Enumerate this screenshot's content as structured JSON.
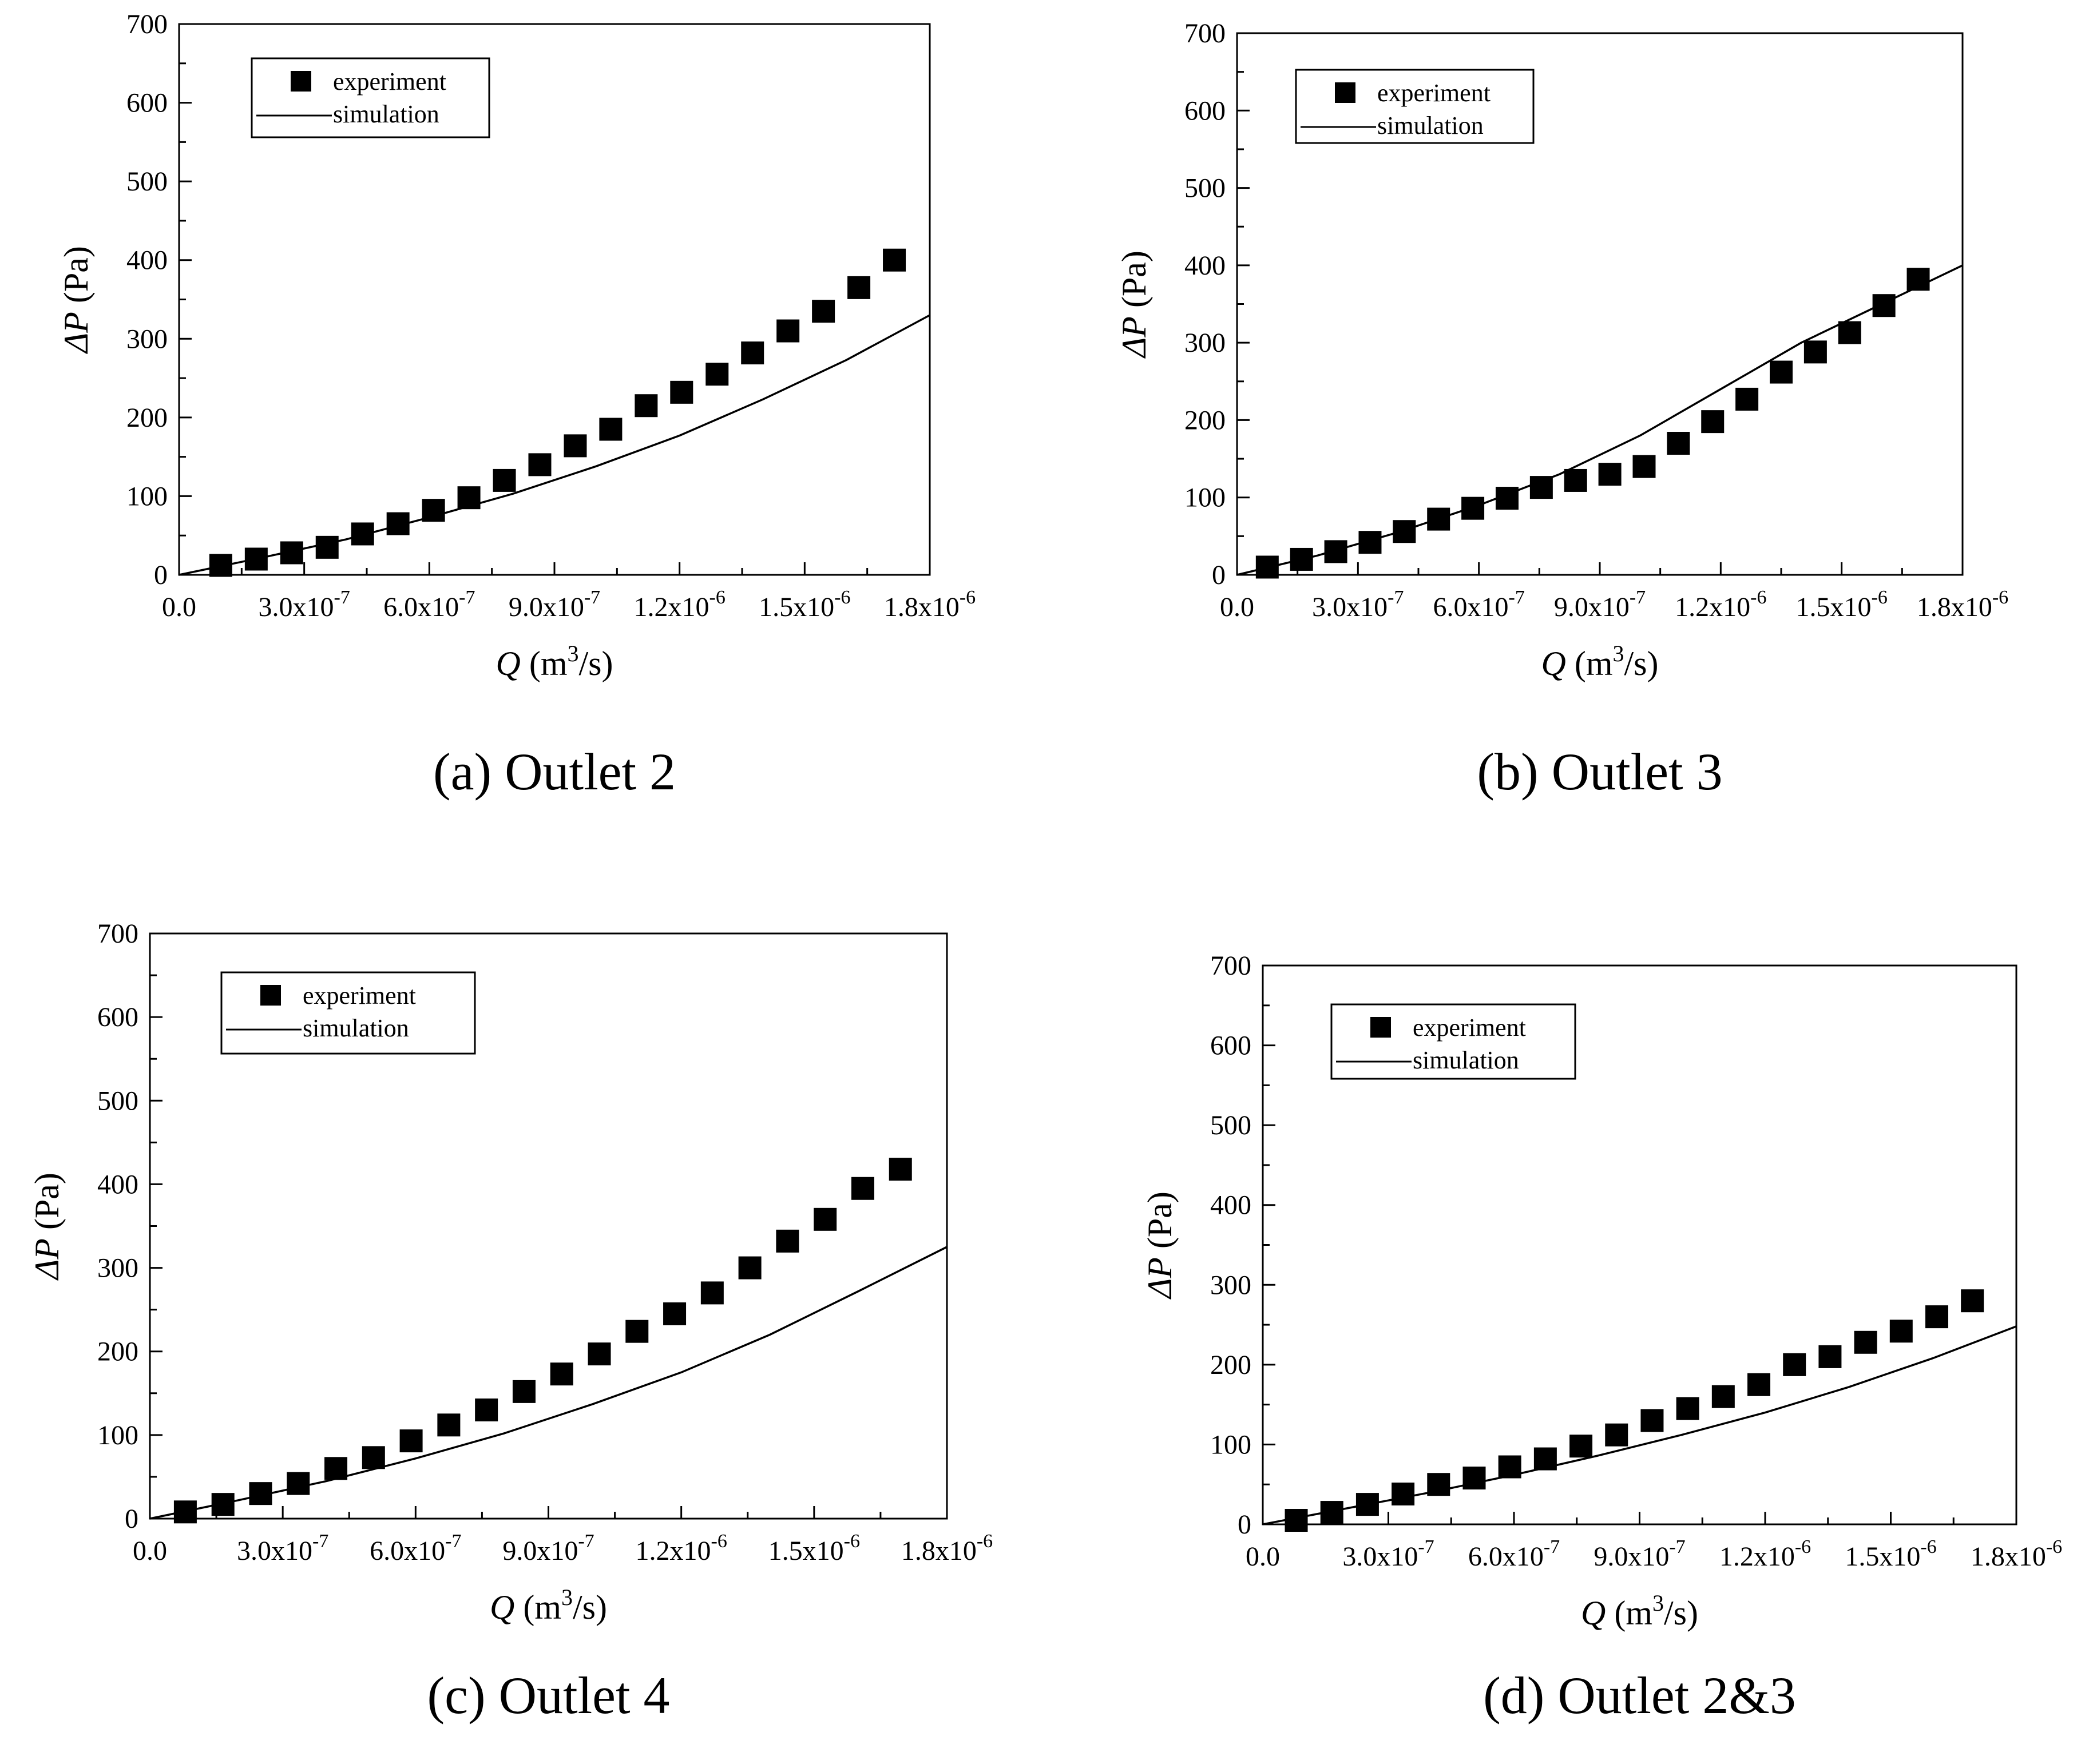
{
  "chart_data": [
    {
      "id": "a",
      "type": "scatter+line",
      "caption": "(a) Outlet 2",
      "xlabel": {
        "italic": "Q",
        "text": " (m",
        "sup": "3",
        "tail": "/s)"
      },
      "ylabel": {
        "italic": "ΔP",
        "text": " (Pa)"
      },
      "xlim": [
        0,
        1.8e-06
      ],
      "ylim": [
        0,
        700
      ],
      "xticks": [
        {
          "value": 0,
          "label": "0.0",
          "exp": ""
        },
        {
          "value": 3e-07,
          "label": "3.0x10",
          "exp": "-7"
        },
        {
          "value": 6e-07,
          "label": "6.0x10",
          "exp": "-7"
        },
        {
          "value": 9e-07,
          "label": "9.0x10",
          "exp": "-7"
        },
        {
          "value": 1.2e-06,
          "label": "1.2x10",
          "exp": "-6"
        },
        {
          "value": 1.5e-06,
          "label": "1.5x10",
          "exp": "-6"
        },
        {
          "value": 1.8e-06,
          "label": "1.8x10",
          "exp": "-6"
        }
      ],
      "yticks": [
        0,
        100,
        200,
        300,
        400,
        500,
        600,
        700
      ],
      "legend": {
        "marker_label": "experiment",
        "line_label": "simulation",
        "position": "top-left"
      },
      "series": [
        {
          "name": "experiment",
          "kind": "scatter",
          "x": [
            1e-07,
            1.85e-07,
            2.7e-07,
            3.55e-07,
            4.4e-07,
            5.25e-07,
            6.1e-07,
            6.95e-07,
            7.8e-07,
            8.65e-07,
            9.5e-07,
            1.035e-06,
            1.12e-06,
            1.205e-06,
            1.29e-06,
            1.375e-06,
            1.46e-06,
            1.545e-06,
            1.63e-06,
            1.715e-06
          ],
          "y": [
            12,
            20,
            28,
            35,
            52,
            65,
            82,
            98,
            120,
            140,
            164,
            185,
            215,
            232,
            255,
            282,
            310,
            335,
            365,
            400
          ]
        },
        {
          "name": "simulation",
          "kind": "line",
          "x": [
            0,
            2e-07,
            4e-07,
            6e-07,
            8e-07,
            1e-06,
            1.2e-06,
            1.4e-06,
            1.6e-06,
            1.8e-06
          ],
          "y": [
            0,
            22,
            45,
            73,
            103,
            138,
            177,
            223,
            273,
            330
          ]
        }
      ]
    },
    {
      "id": "b",
      "type": "scatter+line",
      "caption": "(b) Outlet 3",
      "xlabel": {
        "italic": "Q",
        "text": " (m",
        "sup": "3",
        "tail": "/s)"
      },
      "ylabel": {
        "italic": "ΔP",
        "text": " (Pa)"
      },
      "xlim": [
        0,
        1.8e-06
      ],
      "ylim": [
        0,
        700
      ],
      "xticks": [
        {
          "value": 0,
          "label": "0.0",
          "exp": ""
        },
        {
          "value": 3e-07,
          "label": "3.0x10",
          "exp": "-7"
        },
        {
          "value": 6e-07,
          "label": "6.0x10",
          "exp": "-7"
        },
        {
          "value": 9e-07,
          "label": "9.0x10",
          "exp": "-7"
        },
        {
          "value": 1.2e-06,
          "label": "1.2x10",
          "exp": "-6"
        },
        {
          "value": 1.5e-06,
          "label": "1.5x10",
          "exp": "-6"
        },
        {
          "value": 1.8e-06,
          "label": "1.8x10",
          "exp": "-6"
        }
      ],
      "yticks": [
        0,
        100,
        200,
        300,
        400,
        500,
        600,
        700
      ],
      "legend": {
        "marker_label": "experiment",
        "line_label": "simulation",
        "position": "top-left"
      },
      "series": [
        {
          "name": "experiment",
          "kind": "scatter",
          "x": [
            7.5e-08,
            1.6e-07,
            2.45e-07,
            3.3e-07,
            4.15e-07,
            5e-07,
            5.85e-07,
            6.7e-07,
            7.55e-07,
            8.4e-07,
            9.25e-07,
            1.01e-06,
            1.095e-06,
            1.18e-06,
            1.265e-06,
            1.35e-06,
            1.435e-06,
            1.52e-06,
            1.605e-06,
            1.69e-06
          ],
          "y": [
            10,
            20,
            30,
            42,
            56,
            72,
            86,
            99,
            113,
            122,
            130,
            140,
            170,
            198,
            227,
            262,
            288,
            313,
            348,
            382
          ]
        },
        {
          "name": "simulation",
          "kind": "line",
          "x": [
            0,
            2e-07,
            4e-07,
            6e-07,
            8e-07,
            1e-06,
            1.2e-06,
            1.4e-06,
            1.6e-06,
            1.8e-06
          ],
          "y": [
            0,
            25,
            55,
            90,
            130,
            180,
            240,
            300,
            350,
            400
          ]
        }
      ]
    },
    {
      "id": "c",
      "type": "scatter+line",
      "caption": "(c) Outlet 4",
      "xlabel": {
        "italic": "Q",
        "text": " (m",
        "sup": "3",
        "tail": "/s)"
      },
      "ylabel": {
        "italic": "ΔP",
        "text": " (Pa)"
      },
      "xlim": [
        0,
        1.8e-06
      ],
      "ylim": [
        0,
        700
      ],
      "xticks": [
        {
          "value": 0,
          "label": "0.0",
          "exp": ""
        },
        {
          "value": 3e-07,
          "label": "3.0x10",
          "exp": "-7"
        },
        {
          "value": 6e-07,
          "label": "6.0x10",
          "exp": "-7"
        },
        {
          "value": 9e-07,
          "label": "9.0x10",
          "exp": "-7"
        },
        {
          "value": 1.2e-06,
          "label": "1.2x10",
          "exp": "-6"
        },
        {
          "value": 1.5e-06,
          "label": "1.5x10",
          "exp": "-6"
        },
        {
          "value": 1.8e-06,
          "label": "1.8x10",
          "exp": "-6"
        }
      ],
      "yticks": [
        0,
        100,
        200,
        300,
        400,
        500,
        600,
        700
      ],
      "legend": {
        "marker_label": "experiment",
        "line_label": "simulation",
        "position": "top-left"
      },
      "series": [
        {
          "name": "experiment",
          "kind": "scatter",
          "x": [
            8e-08,
            1.65e-07,
            2.5e-07,
            3.35e-07,
            4.2e-07,
            5.05e-07,
            5.9e-07,
            6.75e-07,
            7.6e-07,
            8.45e-07,
            9.3e-07,
            1.015e-06,
            1.1e-06,
            1.185e-06,
            1.27e-06,
            1.355e-06,
            1.44e-06,
            1.525e-06,
            1.61e-06,
            1.695e-06
          ],
          "y": [
            8,
            17,
            30,
            42,
            60,
            73,
            93,
            112,
            130,
            152,
            173,
            197,
            224,
            245,
            270,
            300,
            332,
            358,
            395,
            418
          ]
        },
        {
          "name": "simulation",
          "kind": "line",
          "x": [
            0,
            2e-07,
            4e-07,
            6e-07,
            8e-07,
            1e-06,
            1.2e-06,
            1.4e-06,
            1.6e-06,
            1.8e-06
          ],
          "y": [
            0,
            22,
            45,
            72,
            102,
            137,
            175,
            220,
            272,
            325
          ]
        }
      ]
    },
    {
      "id": "d",
      "type": "scatter+line",
      "caption": "(d) Outlet 2&3",
      "xlabel": {
        "italic": "Q",
        "text": " (m",
        "sup": "3",
        "tail": "/s)"
      },
      "ylabel": {
        "italic": "ΔP",
        "text": " (Pa)"
      },
      "xlim": [
        0,
        1.8e-06
      ],
      "ylim": [
        0,
        700
      ],
      "xticks": [
        {
          "value": 0,
          "label": "0.0",
          "exp": ""
        },
        {
          "value": 3e-07,
          "label": "3.0x10",
          "exp": "-7"
        },
        {
          "value": 6e-07,
          "label": "6.0x10",
          "exp": "-7"
        },
        {
          "value": 9e-07,
          "label": "9.0x10",
          "exp": "-7"
        },
        {
          "value": 1.2e-06,
          "label": "1.2x10",
          "exp": "-6"
        },
        {
          "value": 1.5e-06,
          "label": "1.5x10",
          "exp": "-6"
        },
        {
          "value": 1.8e-06,
          "label": "1.8x10",
          "exp": "-6"
        }
      ],
      "yticks": [
        0,
        100,
        200,
        300,
        400,
        500,
        600,
        700
      ],
      "legend": {
        "marker_label": "experiment",
        "line_label": "simulation",
        "position": "top-left"
      },
      "series": [
        {
          "name": "experiment",
          "kind": "scatter",
          "x": [
            8e-08,
            1.65e-07,
            2.5e-07,
            3.35e-07,
            4.2e-07,
            5.05e-07,
            5.9e-07,
            6.75e-07,
            7.6e-07,
            8.45e-07,
            9.3e-07,
            1.015e-06,
            1.1e-06,
            1.185e-06,
            1.27e-06,
            1.355e-06,
            1.44e-06,
            1.525e-06,
            1.61e-06,
            1.695e-06
          ],
          "y": [
            5,
            15,
            25,
            38,
            50,
            58,
            72,
            82,
            98,
            112,
            130,
            145,
            160,
            175,
            200,
            210,
            228,
            242,
            260,
            280
          ]
        },
        {
          "name": "simulation",
          "kind": "line",
          "x": [
            0,
            2e-07,
            4e-07,
            6e-07,
            8e-07,
            1e-06,
            1.2e-06,
            1.4e-06,
            1.6e-06,
            1.8e-06
          ],
          "y": [
            0,
            20,
            40,
            62,
            86,
            112,
            140,
            172,
            208,
            248
          ]
        }
      ]
    }
  ]
}
